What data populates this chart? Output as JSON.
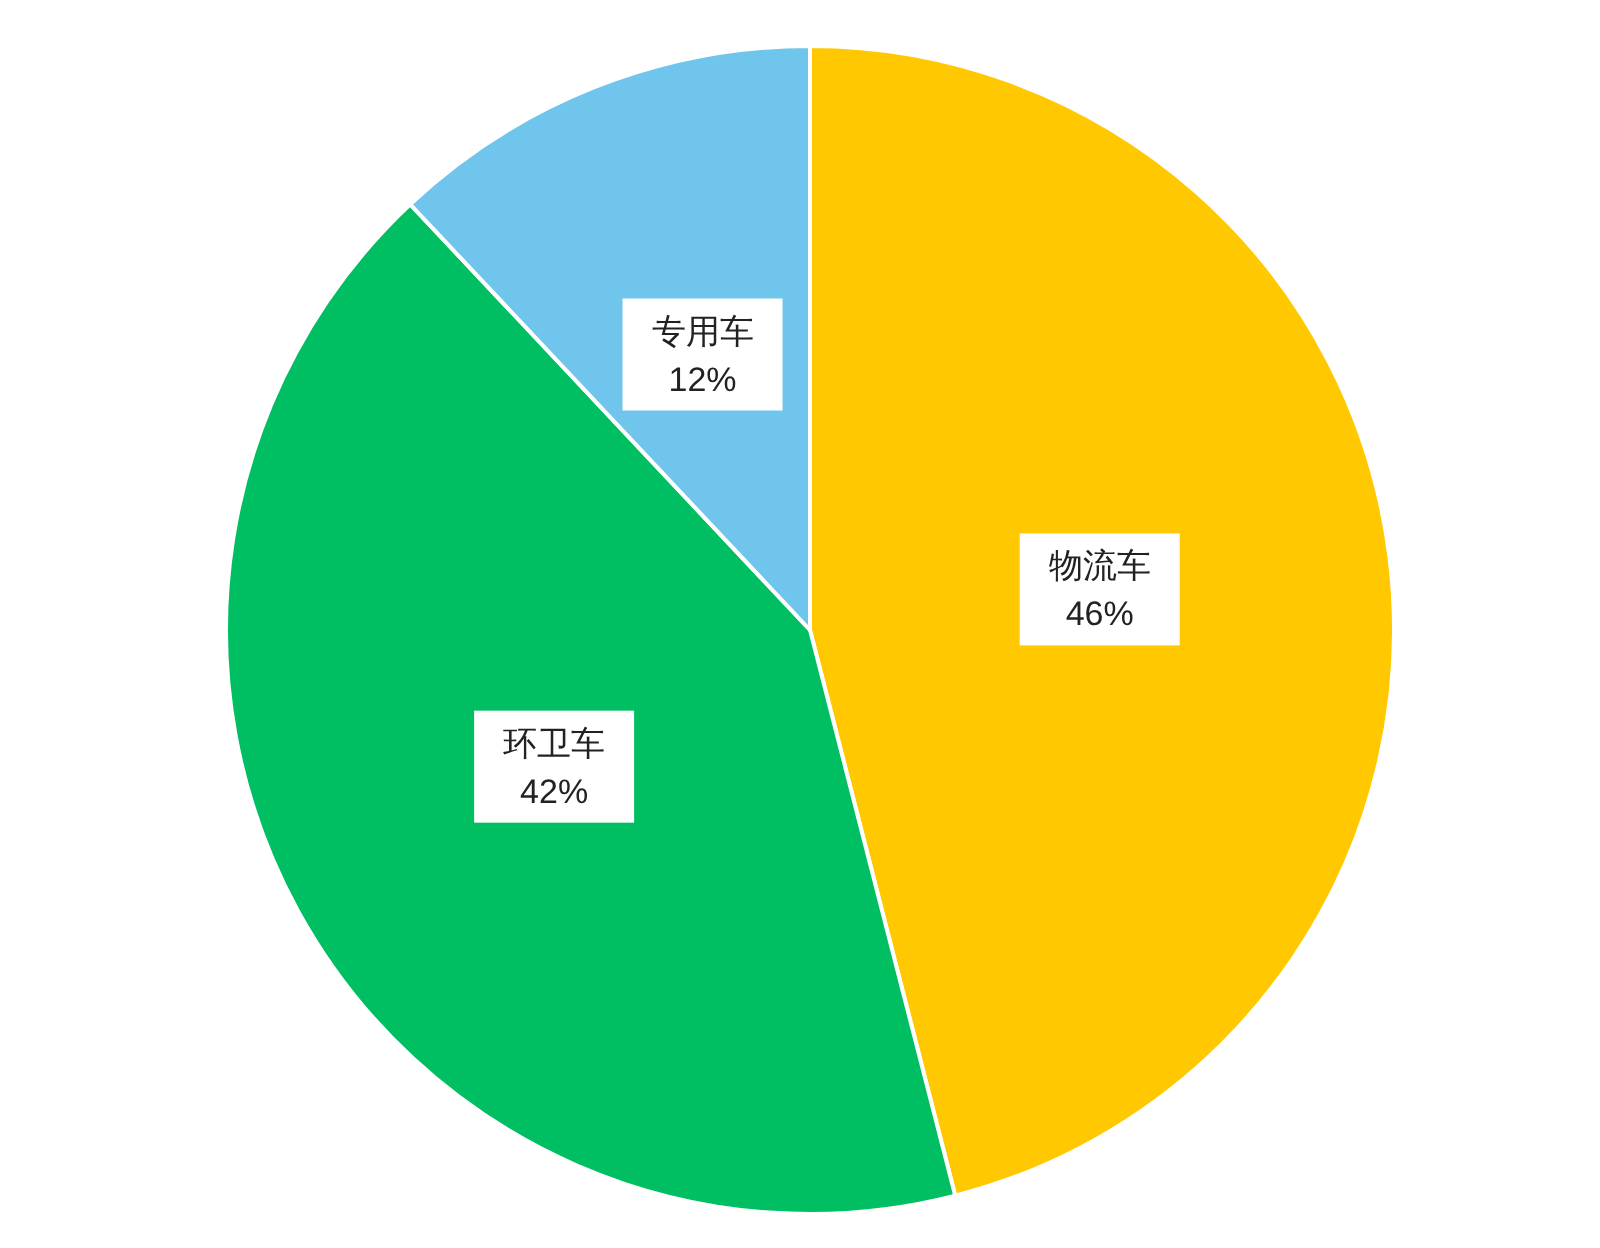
{
  "chart_data": {
    "type": "pie",
    "categories": [
      "物流车",
      "环卫车",
      "专用车"
    ],
    "values": [
      46,
      42,
      12
    ],
    "colors": [
      "#ffc800",
      "#00bf63",
      "#6fc5ec"
    ],
    "value_labels": [
      "46%",
      "42%",
      "12%"
    ]
  }
}
